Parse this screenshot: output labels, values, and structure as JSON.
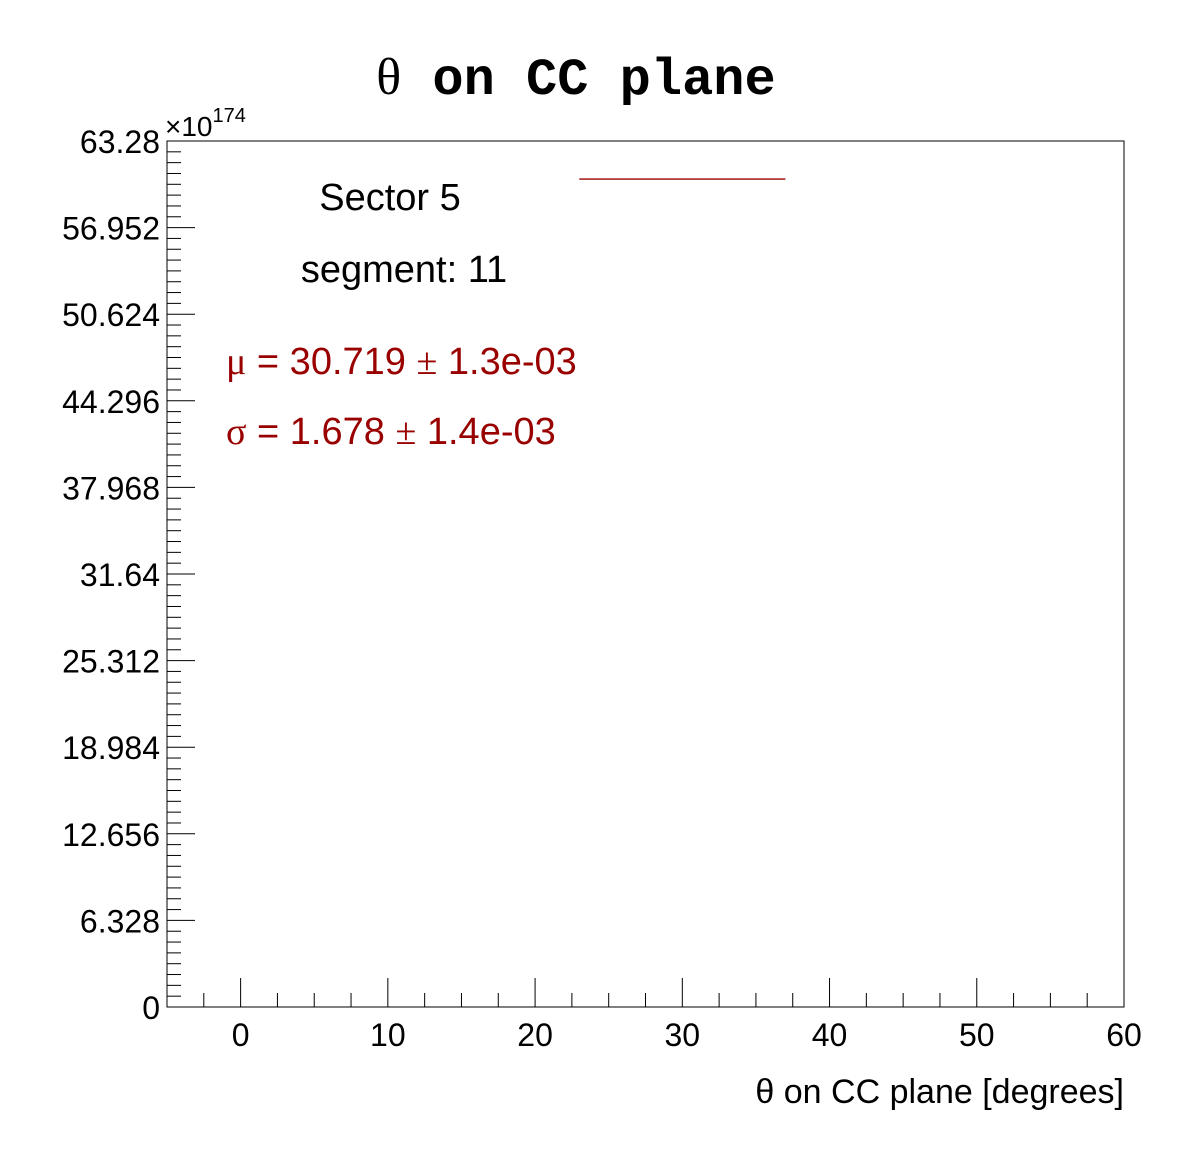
{
  "colors": {
    "fit": "#990000",
    "axis": "#000000",
    "background": "#ffffff"
  },
  "chart_data": {
    "type": "line",
    "title_symbol": "θ",
    "title_text": " on CC plane",
    "xlabel": "θ on CC plane    [degrees]",
    "ylabel": "",
    "xlim": [
      -5,
      60
    ],
    "ylim": [
      0,
      63.28
    ],
    "y_exponent_prefix": "×10",
    "y_exponent_power": "174",
    "x_ticks": [
      0,
      10,
      20,
      30,
      40,
      50,
      60
    ],
    "x_tick_labels": [
      "0",
      "10",
      "20",
      "30",
      "40",
      "50",
      "60"
    ],
    "y_ticks": [
      0,
      6.328,
      12.656,
      18.984,
      25.312,
      31.64,
      37.968,
      44.296,
      50.624,
      56.952,
      63.28
    ],
    "y_tick_labels": [
      "0",
      "6.328",
      "12.656",
      "18.984",
      "25.312",
      "31.64",
      "37.968",
      "44.296",
      "50.624",
      "56.952",
      "63.28"
    ],
    "grid": false,
    "series": [
      {
        "color": "#990000",
        "x": [
          23,
          37
        ],
        "y": [
          60.5,
          60.5
        ]
      }
    ],
    "annotations": {
      "sector": "Sector 5",
      "segment": "segment: 11",
      "mu_symbol": "μ",
      "mu_text": " = 30.719 ",
      "mu_pm": "±",
      "mu_err": " 1.3e-03",
      "sigma_symbol": "σ",
      "sigma_text": " = 1.678 ",
      "sigma_pm": "±",
      "sigma_err": " 1.4e-03"
    }
  }
}
